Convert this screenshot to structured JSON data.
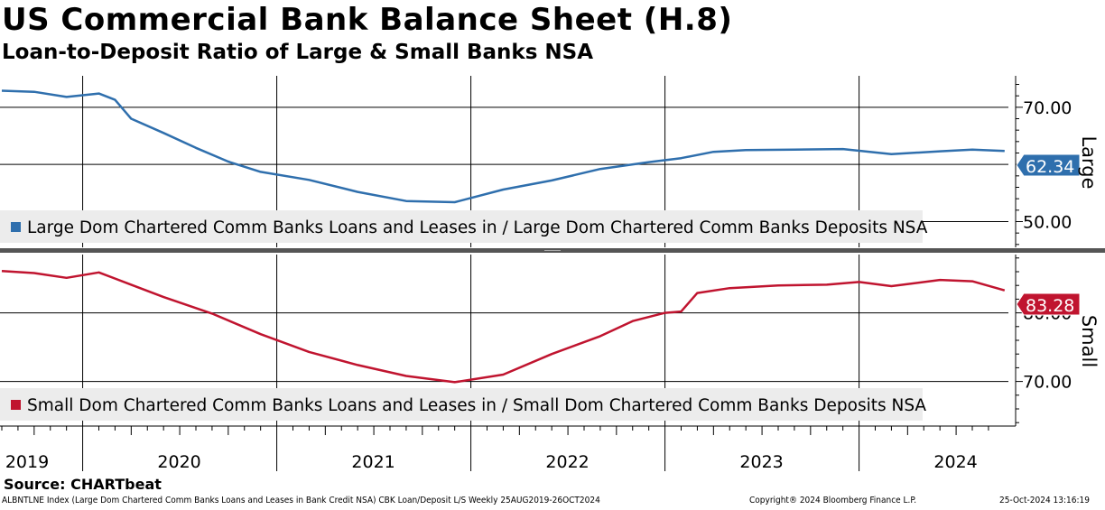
{
  "title": "US Commercial Bank Balance Sheet (H.8)",
  "subtitle": "Loan-to-Deposit Ratio of Large & Small Banks NSA",
  "source": "Source: CHARTbeat",
  "footer": {
    "left": "ALBNTLNE Index (Large Dom Chartered Comm Banks Loans and Leases in Bank Credit NSA) CBK Loan/Deposit L/S  Weekly 25AUG2019-26OCT2024",
    "copyright": "Copyright® 2024 Bloomberg Finance L.P.",
    "timestamp": "25-Oct-2024 13:16:19"
  },
  "colors": {
    "large": "#2f6fad",
    "small": "#c0142f"
  },
  "x_axis": {
    "labels": [
      "2019",
      "2020",
      "2021",
      "2022",
      "2023",
      "2024"
    ]
  },
  "chart_data": [
    {
      "type": "line",
      "panel": "Large",
      "legend": "Large Dom Chartered Comm Banks Loans and Leases in / Large Dom Chartered Comm Banks Deposits NSA",
      "color": "#2f6fad",
      "last_value_label": "62.34",
      "yticks": [
        "70.00",
        "60.00",
        "50.00"
      ],
      "ylim": [
        45.5,
        75.5
      ],
      "grid": true,
      "x": [
        "2019-08",
        "2019-10",
        "2019-12",
        "2020-02",
        "2020-03",
        "2020-04",
        "2020-06",
        "2020-08",
        "2020-10",
        "2020-12",
        "2021-03",
        "2021-06",
        "2021-09",
        "2021-12",
        "2022-03",
        "2022-06",
        "2022-09",
        "2022-12",
        "2023-02",
        "2023-04",
        "2023-06",
        "2023-09",
        "2023-12",
        "2024-03",
        "2024-06",
        "2024-08",
        "2024-10"
      ],
      "values": [
        72.9,
        72.7,
        71.8,
        72.4,
        71.3,
        68.0,
        65.5,
        62.9,
        60.5,
        58.7,
        57.3,
        55.2,
        53.6,
        53.4,
        55.6,
        57.2,
        59.2,
        60.4,
        61.1,
        62.2,
        62.5,
        62.6,
        62.7,
        61.8,
        62.3,
        62.6,
        62.34
      ]
    },
    {
      "type": "line",
      "panel": "Small",
      "legend": "Small Dom Chartered Comm Banks Loans and Leases in / Small Dom Chartered Comm Banks Deposits NSA",
      "color": "#c0142f",
      "last_value_label": "83.28",
      "yticks": [
        "80.00",
        "70.00"
      ],
      "ylim": [
        63.5,
        88.5
      ],
      "grid": true,
      "x": [
        "2019-08",
        "2019-10",
        "2019-12",
        "2020-02",
        "2020-04",
        "2020-06",
        "2020-09",
        "2020-12",
        "2021-03",
        "2021-06",
        "2021-09",
        "2021-12",
        "2022-03",
        "2022-06",
        "2022-09",
        "2022-11",
        "2023-01",
        "2023-02",
        "2023-03",
        "2023-05",
        "2023-08",
        "2023-11",
        "2024-01",
        "2024-03",
        "2024-06",
        "2024-08",
        "2024-10"
      ],
      "values": [
        86.1,
        85.8,
        85.1,
        85.9,
        84.1,
        82.3,
        79.9,
        76.9,
        74.3,
        72.4,
        70.8,
        69.9,
        71.0,
        74.0,
        76.6,
        78.8,
        80.0,
        80.2,
        82.9,
        83.6,
        84.0,
        84.1,
        84.5,
        83.9,
        84.8,
        84.6,
        83.28
      ]
    }
  ]
}
